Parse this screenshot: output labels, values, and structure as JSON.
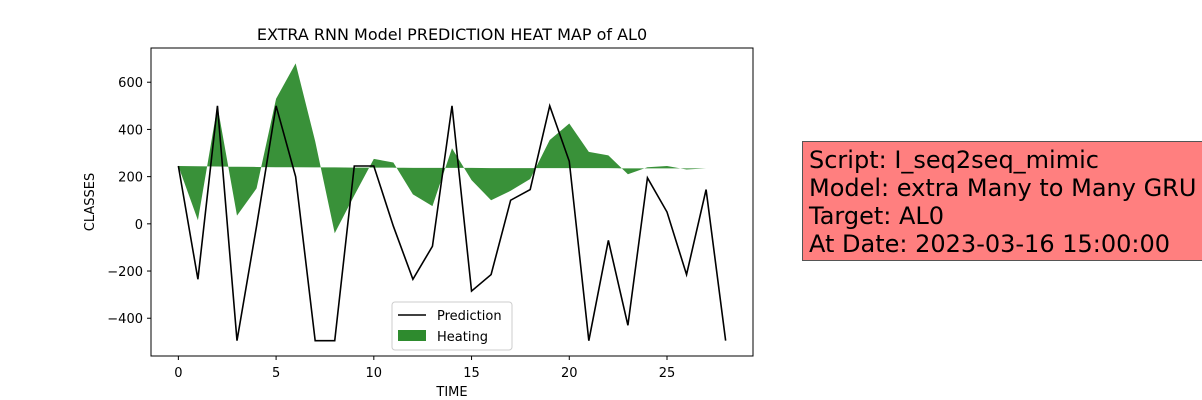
{
  "chart_data": {
    "type": "line",
    "title": "EXTRA RNN Model PREDICTION HEAT MAP of AL0",
    "xlabel": "TIME",
    "ylabel": "CLASSES",
    "xlim": [
      -1.4,
      29.4
    ],
    "ylim": [
      -560,
      745
    ],
    "xticks": [
      0,
      5,
      10,
      15,
      20,
      25
    ],
    "yticks": [
      -400,
      -200,
      0,
      200,
      400,
      600
    ],
    "legend_position": "bottom-center",
    "x": [
      0,
      1,
      2,
      3,
      4,
      5,
      6,
      7,
      8,
      9,
      10,
      11,
      12,
      13,
      14,
      15,
      16,
      17,
      18,
      19,
      20,
      21,
      22,
      23,
      24,
      25,
      26,
      27,
      28
    ],
    "series": [
      {
        "name": "Prediction",
        "color": "#000000",
        "values": [
          245,
          -235,
          500,
          -495,
          -10,
          500,
          200,
          -495,
          -495,
          245,
          245,
          -10,
          -235,
          -95,
          500,
          -285,
          -215,
          100,
          145,
          500,
          265,
          -495,
          -70,
          -430,
          195,
          50,
          -215,
          145,
          -495
        ]
      },
      {
        "name": "Heating",
        "color": "#2e8b2e",
        "kind": "area",
        "baseline": [
          245,
          244,
          243,
          242,
          241,
          240,
          240,
          239,
          239,
          238,
          238,
          238,
          237,
          237,
          237,
          237,
          236,
          236,
          236,
          236,
          236,
          236,
          236,
          235,
          235,
          235,
          235,
          235,
          235
        ],
        "values": [
          245,
          15,
          500,
          35,
          150,
          530,
          680,
          350,
          -40,
          120,
          275,
          260,
          125,
          75,
          320,
          185,
          100,
          140,
          190,
          355,
          425,
          305,
          290,
          210,
          240,
          245,
          230,
          235,
          235
        ]
      }
    ]
  },
  "info": {
    "lines": [
      "Script: I_seq2seq_mimic",
      "Model: extra Many to Many GRU",
      "Target: AL0",
      "At Date: 2023-03-16 15:00:00"
    ]
  }
}
